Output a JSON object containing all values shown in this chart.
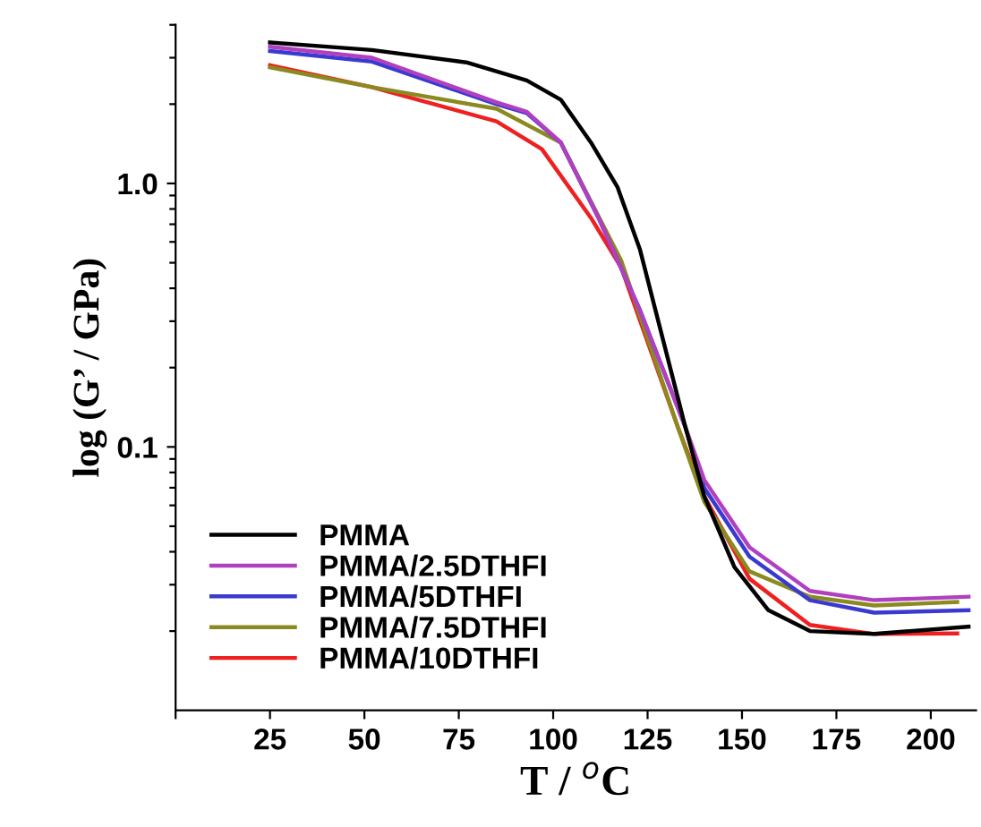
{
  "chart_data": {
    "type": "line",
    "xlabel": "T / $^{o}$C",
    "ylabel": "log (G’ / GPa)",
    "log": "y",
    "grid": false,
    "legend": "bottom left",
    "line_style": "solid",
    "marker": "none",
    "xlim": [
      0,
      212
    ],
    "ylim": [
      0.01,
      4
    ],
    "xticks": [
      {
        "value": 0,
        "label": null
      },
      25,
      50,
      75,
      100,
      125,
      150,
      175,
      200
    ],
    "yticks": [
      {
        "value": 0.02,
        "label": null
      },
      {
        "value": 0.03,
        "label": null
      },
      {
        "value": 0.04,
        "label": null
      },
      {
        "value": 0.05,
        "label": null
      },
      {
        "value": 0.06,
        "label": null
      },
      {
        "value": 0.07,
        "label": null
      },
      {
        "value": 0.08,
        "label": null
      },
      {
        "value": 0.09,
        "label": null
      },
      0.1,
      {
        "value": 0.2,
        "label": null
      },
      {
        "value": 0.3,
        "label": null
      },
      {
        "value": 0.4,
        "label": null
      },
      {
        "value": 0.5,
        "label": null
      },
      {
        "value": 0.6,
        "label": null
      },
      {
        "value": 0.7,
        "label": null
      },
      {
        "value": 0.8,
        "label": null
      },
      {
        "value": 0.9,
        "label": null
      },
      {
        "value": 1,
        "label": "1.0"
      },
      {
        "value": 2,
        "label": null
      },
      {
        "value": 3,
        "label": null
      },
      {
        "value": 4,
        "label": null
      }
    ],
    "series": [
      {
        "name": "PMMA",
        "color": "#000000",
        "x": [
          25,
          52,
          77,
          93,
          102,
          110,
          117,
          123,
          135,
          140,
          148,
          157,
          168,
          185,
          210
        ],
        "values": [
          3.43,
          3.21,
          2.88,
          2.46,
          2.08,
          1.43,
          0.97,
          0.56,
          0.119,
          0.065,
          0.035,
          0.024,
          0.02,
          0.0195,
          0.0208
        ]
      },
      {
        "name": "PMMA/2.5DTHFI",
        "color": "#b040c0",
        "x": [
          25,
          52,
          85,
          93,
          102,
          112,
          123,
          135,
          140,
          152,
          168,
          185,
          210
        ],
        "values": [
          3.3,
          3.0,
          2.03,
          1.87,
          1.43,
          0.74,
          0.33,
          0.119,
          0.075,
          0.0416,
          0.0284,
          0.0262,
          0.027
        ]
      },
      {
        "name": "PMMA/5DTHFI",
        "color": "#3a3ad0",
        "x": [
          25,
          52,
          85,
          93,
          102,
          112,
          123,
          135,
          140,
          152,
          168,
          185,
          210
        ],
        "values": [
          3.18,
          2.9,
          2.0,
          1.85,
          1.43,
          0.74,
          0.33,
          0.119,
          0.07,
          0.0383,
          0.0262,
          0.0235,
          0.024
        ]
      },
      {
        "name": "PMMA/7.5DTHFI",
        "color": "#8a8a20",
        "x": [
          25,
          52,
          85,
          102,
          118,
          133,
          140,
          152,
          168,
          185,
          207
        ],
        "values": [
          2.76,
          2.32,
          1.92,
          1.43,
          0.51,
          0.119,
          0.062,
          0.0337,
          0.027,
          0.025,
          0.0258
        ]
      },
      {
        "name": "PMMA/10DTHFI",
        "color": "#ee2020",
        "x": [
          25,
          52,
          85,
          97,
          110,
          118,
          133,
          140,
          152,
          168,
          185,
          207
        ],
        "values": [
          2.81,
          2.32,
          1.72,
          1.35,
          0.74,
          0.48,
          0.119,
          0.065,
          0.0316,
          0.0211,
          0.0195,
          0.0196
        ]
      }
    ]
  }
}
